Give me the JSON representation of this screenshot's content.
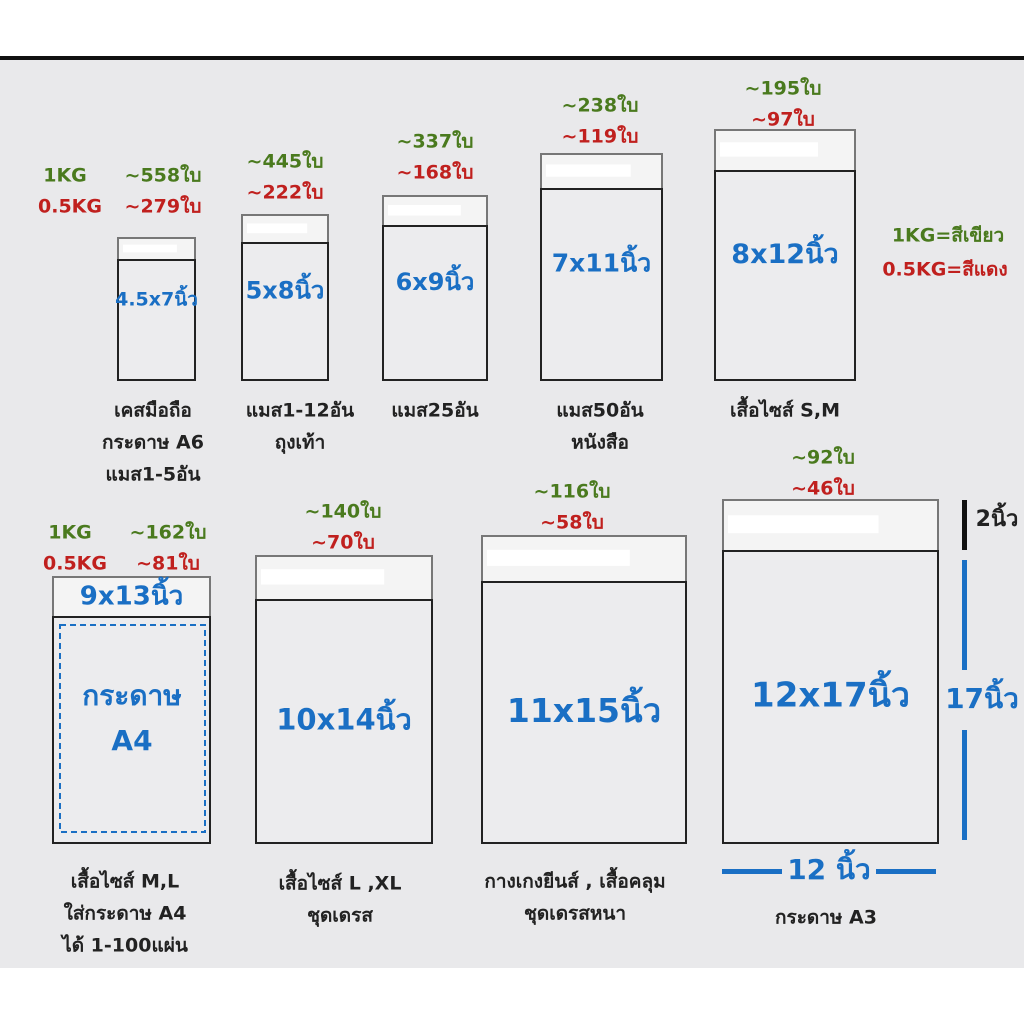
{
  "legend": {
    "green": "1KG=สีเขียว",
    "red": "0.5KG=สีแดง"
  },
  "bags": [
    {
      "size": "4.5x7นิ้ว",
      "weight_1kg": "1KG",
      "weight_05kg": "0.5KG",
      "count_1kg": "~558ใบ",
      "count_05kg": "~279ใบ",
      "desc": [
        "เคสมือถือ",
        "กระดาษ A6",
        "แมส1-5อัน"
      ]
    },
    {
      "size": "5x8นิ้ว",
      "count_1kg": "~445ใบ",
      "count_05kg": "~222ใบ",
      "desc": [
        "แมส1-12อัน",
        "ถุงเท้า"
      ]
    },
    {
      "size": "6x9นิ้ว",
      "count_1kg": "~337ใบ",
      "count_05kg": "~168ใบ",
      "desc": [
        "แมส25อัน"
      ]
    },
    {
      "size": "7x11นิ้ว",
      "count_1kg": "~238ใบ",
      "count_05kg": "~119ใบ",
      "desc": [
        "แมส50อัน",
        "หนังสือ"
      ]
    },
    {
      "size": "8x12นิ้ว",
      "count_1kg": "~195ใบ",
      "count_05kg": "~97ใบ",
      "desc": [
        "เสื้อไซส์ S,M"
      ]
    },
    {
      "size": "9x13นิ้ว",
      "weight_1kg": "1KG",
      "weight_05kg": "0.5KG",
      "count_1kg": "~162ใบ",
      "count_05kg": "~81ใบ",
      "inner_label": [
        "กระดาษ",
        "A4"
      ],
      "desc": [
        "เสื้อไซส์ M,L",
        "ใส่กระดาษ A4",
        "ได้ 1-100แผ่น"
      ]
    },
    {
      "size": "10x14นิ้ว",
      "count_1kg": "~140ใบ",
      "count_05kg": "~70ใบ",
      "desc": [
        "เสื้อไซส์ L ,XL",
        "ชุดเดรส"
      ]
    },
    {
      "size": "11x15นิ้ว",
      "count_1kg": "~116ใบ",
      "count_05kg": "~58ใบ",
      "desc": [
        "กางเกงยีนส์ , เสื้อคลุม",
        "ชุดเดรสหนา"
      ]
    },
    {
      "size": "12x17นิ้ว",
      "count_1kg": "~92ใบ",
      "count_05kg": "~46ใบ",
      "desc": [
        "กระดาษ A3"
      ]
    }
  ],
  "dimensions": {
    "flap": "2นิ้ว",
    "height": "17นิ้ว",
    "width": "12 นิ้ว"
  }
}
